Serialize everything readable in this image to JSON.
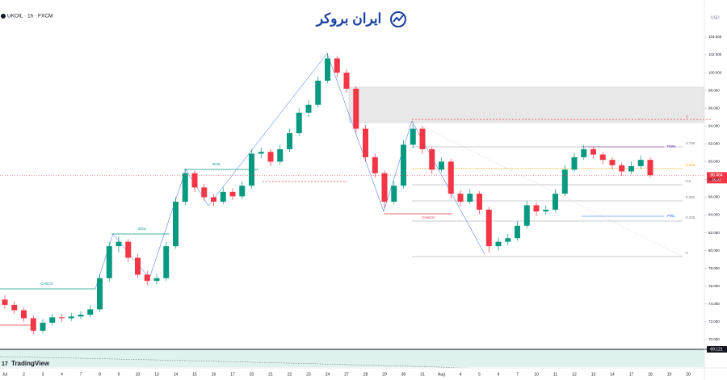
{
  "chart_data": {
    "type": "candlestick",
    "title": "UKOIL · 1h · FXCM",
    "currency": "USD",
    "logo_text": "ایران بروکر",
    "brand": "TradingView",
    "up_color": "#089981",
    "down_color": "#f23645",
    "ylim": [
      67,
      107
    ],
    "yticks": [
      {
        "value": 68,
        "label": "68.000"
      },
      {
        "value": 70,
        "label": "70.000"
      },
      {
        "value": 72,
        "label": "72.000"
      },
      {
        "value": 74,
        "label": "74.000"
      },
      {
        "value": 76,
        "label": "76.000"
      },
      {
        "value": 78,
        "label": "78.000"
      },
      {
        "value": 80,
        "label": "80.000"
      },
      {
        "value": 82,
        "label": "82.000"
      },
      {
        "value": 84,
        "label": "84.000"
      },
      {
        "value": 86,
        "label": "86.000"
      },
      {
        "value": 88,
        "label": "88.000"
      },
      {
        "value": 90,
        "label": "90.000"
      },
      {
        "value": 92,
        "label": "92.000"
      },
      {
        "value": 94,
        "label": "94.000"
      },
      {
        "value": 96,
        "label": "96.000"
      },
      {
        "value": 98,
        "label": "98.000"
      },
      {
        "value": 100,
        "label": "100.000"
      },
      {
        "value": 102,
        "label": "102.000"
      },
      {
        "value": 104,
        "label": "104.000"
      }
    ],
    "xlabels": [
      "Jul",
      "2",
      "3",
      "4",
      "7",
      "8",
      "9",
      "10",
      "13",
      "14",
      "15",
      "16",
      "17",
      "20",
      "21",
      "22",
      "23",
      "24",
      "27",
      "28",
      "29",
      "30",
      "31",
      "Aug",
      "4",
      "5",
      "6",
      "7",
      "10",
      "11",
      "12",
      "13",
      "14",
      "17",
      "18",
      "19",
      "20"
    ],
    "ohlc": [
      [
        74.5,
        75.0,
        73.5,
        73.9
      ],
      [
        73.9,
        74.3,
        72.9,
        73.3
      ],
      [
        73.3,
        73.6,
        72.0,
        72.4
      ],
      [
        72.4,
        72.7,
        70.6,
        71.0
      ],
      [
        71.0,
        72.3,
        70.7,
        71.9
      ],
      [
        71.9,
        72.9,
        71.6,
        72.5
      ],
      [
        72.5,
        72.9,
        72.0,
        72.4
      ],
      [
        72.4,
        73.0,
        72.1,
        72.6
      ],
      [
        72.6,
        73.2,
        72.3,
        72.8
      ],
      [
        72.8,
        73.9,
        72.5,
        73.4
      ],
      [
        73.4,
        77.4,
        73.1,
        76.9
      ],
      [
        76.9,
        81.0,
        76.5,
        80.5
      ],
      [
        80.5,
        81.6,
        79.8,
        81.0
      ],
      [
        81.0,
        81.3,
        78.7,
        79.2
      ],
      [
        79.2,
        79.6,
        76.9,
        77.3
      ],
      [
        77.3,
        77.7,
        76.1,
        76.6
      ],
      [
        76.6,
        77.4,
        76.2,
        76.9
      ],
      [
        76.9,
        81.0,
        76.6,
        80.5
      ],
      [
        80.5,
        86.0,
        80.2,
        85.5
      ],
      [
        85.5,
        89.2,
        85.1,
        88.7
      ],
      [
        88.7,
        89.0,
        86.6,
        87.1
      ],
      [
        87.1,
        87.5,
        85.6,
        86.0
      ],
      [
        86.0,
        86.3,
        85.0,
        85.5
      ],
      [
        85.5,
        87.1,
        85.2,
        86.6
      ],
      [
        86.6,
        87.0,
        85.7,
        86.1
      ],
      [
        86.1,
        87.8,
        85.8,
        87.3
      ],
      [
        87.3,
        91.4,
        87.0,
        90.9
      ],
      [
        90.9,
        91.6,
        90.4,
        91.1
      ],
      [
        91.1,
        91.4,
        89.5,
        90.0
      ],
      [
        90.0,
        91.9,
        89.7,
        91.4
      ],
      [
        91.4,
        93.7,
        91.1,
        93.2
      ],
      [
        93.2,
        96.0,
        92.9,
        95.5
      ],
      [
        95.5,
        96.9,
        95.0,
        96.4
      ],
      [
        96.4,
        99.6,
        96.1,
        99.1
      ],
      [
        99.1,
        102.2,
        98.8,
        101.6
      ],
      [
        101.6,
        101.9,
        99.5,
        100.0
      ],
      [
        100.0,
        100.4,
        97.7,
        98.2
      ],
      [
        98.2,
        98.5,
        93.2,
        93.7
      ],
      [
        93.7,
        94.1,
        90.0,
        90.5
      ],
      [
        90.5,
        90.9,
        88.2,
        88.7
      ],
      [
        88.7,
        89.0,
        84.8,
        85.5
      ],
      [
        85.5,
        87.8,
        85.2,
        87.3
      ],
      [
        87.3,
        92.4,
        87.0,
        91.9
      ],
      [
        91.9,
        94.2,
        91.5,
        93.7
      ],
      [
        93.7,
        94.0,
        90.9,
        91.4
      ],
      [
        91.4,
        91.7,
        88.6,
        89.1
      ],
      [
        89.1,
        90.5,
        88.8,
        90.0
      ],
      [
        90.0,
        90.3,
        85.9,
        86.4
      ],
      [
        86.4,
        86.8,
        85.0,
        85.5
      ],
      [
        85.5,
        86.9,
        85.2,
        86.4
      ],
      [
        86.4,
        86.7,
        84.1,
        84.6
      ],
      [
        84.6,
        84.9,
        79.8,
        80.5
      ],
      [
        80.5,
        81.5,
        80.0,
        81.0
      ],
      [
        81.0,
        81.9,
        80.6,
        81.4
      ],
      [
        81.4,
        83.3,
        81.1,
        82.8
      ],
      [
        82.8,
        85.6,
        82.5,
        85.1
      ],
      [
        85.1,
        85.4,
        83.9,
        84.4
      ],
      [
        84.4,
        85.1,
        84.0,
        84.6
      ],
      [
        84.6,
        86.9,
        84.3,
        86.4
      ],
      [
        86.4,
        89.6,
        86.1,
        89.1
      ],
      [
        89.1,
        91.0,
        88.8,
        90.5
      ],
      [
        90.5,
        91.9,
        90.2,
        91.4
      ],
      [
        91.4,
        91.7,
        90.3,
        90.8
      ],
      [
        90.8,
        91.1,
        89.7,
        90.2
      ],
      [
        90.2,
        90.5,
        89.1,
        89.6
      ],
      [
        89.6,
        89.9,
        88.4,
        88.9
      ],
      [
        88.9,
        90.0,
        88.6,
        89.5
      ],
      [
        89.5,
        90.7,
        89.2,
        90.2
      ],
      [
        90.2,
        90.5,
        88.2,
        88.464
      ]
    ],
    "countdown": "06:41",
    "indicator_value": "69.121",
    "annotations": {
      "choch1": "CHoCH",
      "bos1": "BOS",
      "bos2": "BOS",
      "choch2": "CHoCH",
      "pwh": "PWH",
      "pwl": "PWL"
    },
    "fib_labels": {
      "f1": "1",
      "f786": "0.786",
      "f618": "0.618",
      "f5": "0.5",
      "f382": "0.382",
      "f236": "0.236",
      "f0": "0"
    }
  }
}
